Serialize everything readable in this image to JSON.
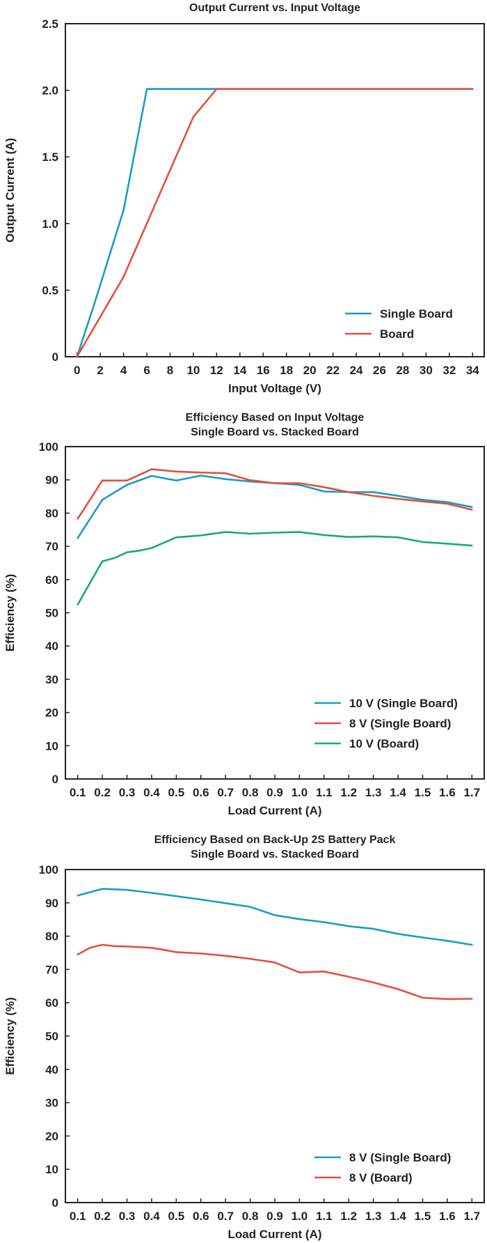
{
  "chart_data": [
    {
      "type": "line",
      "title": [
        "Output Current vs. Input Voltage"
      ],
      "xlabel": "Input Voltage (V)",
      "ylabel": "Output Current (A)",
      "xlim": [
        -1,
        35
      ],
      "ylim": [
        0,
        2.5
      ],
      "xticks": [
        "0",
        "2",
        "4",
        "6",
        "8",
        "10",
        "12",
        "14",
        "16",
        "18",
        "20",
        "22",
        "24",
        "26",
        "28",
        "30",
        "32",
        "34"
      ],
      "yticks": [
        "0",
        "0.5",
        "1.0",
        "1.5",
        "2.0",
        "2.5"
      ],
      "grid": false,
      "legend_position": "bottom-right",
      "series": [
        {
          "name": "Single Board",
          "color": "#1a9bc7",
          "x": [
            0,
            1.5,
            4,
            6,
            34
          ],
          "y": [
            0,
            0.4,
            1.1,
            2.01,
            2.01
          ]
        },
        {
          "name": "Board",
          "color": "#e0513f",
          "x": [
            0,
            4,
            10,
            12,
            34
          ],
          "y": [
            0,
            0.6,
            1.8,
            2.01,
            2.01
          ]
        }
      ]
    },
    {
      "type": "line",
      "title": [
        "Efficiency Based on Input Voltage",
        "Single Board vs. Stacked Board"
      ],
      "xlabel": "Load Current (A)",
      "ylabel": "Efficiency (%)",
      "xlim": [
        0.05,
        1.75
      ],
      "ylim": [
        0,
        100
      ],
      "xticks": [
        "0.1",
        "0.2",
        "0.3",
        "0.4",
        "0.5",
        "0.6",
        "0.7",
        "0.8",
        "0.9",
        "1.0",
        "1.1",
        "1.2",
        "1.3",
        "1.4",
        "1.5",
        "1.6",
        "1.7"
      ],
      "yticks": [
        "0",
        "10",
        "20",
        "30",
        "40",
        "50",
        "60",
        "70",
        "80",
        "90",
        "100"
      ],
      "grid": false,
      "legend_position": "bottom-right",
      "series": [
        {
          "name": "10 V (Single Board)",
          "color": "#1a9bc7",
          "x": [
            0.1,
            0.2,
            0.3,
            0.4,
            0.5,
            0.6,
            0.7,
            0.8,
            0.9,
            1.0,
            1.1,
            1.2,
            1.3,
            1.4,
            1.5,
            1.6,
            1.7
          ],
          "y": [
            72.5,
            84,
            88.5,
            91.2,
            89.8,
            91.3,
            90.2,
            89.5,
            89,
            88.5,
            86.5,
            86.3,
            86.3,
            85.2,
            84,
            83.3,
            81.8
          ]
        },
        {
          "name": "8 V (Single Board)",
          "color": "#e0513f",
          "x": [
            0.1,
            0.2,
            0.3,
            0.4,
            0.5,
            0.6,
            0.7,
            0.8,
            0.9,
            1.0,
            1.1,
            1.2,
            1.3,
            1.4,
            1.5,
            1.6,
            1.7
          ],
          "y": [
            78.3,
            89.8,
            89.8,
            93.2,
            92.5,
            92.2,
            92,
            89.9,
            89,
            89,
            87.8,
            86.3,
            85.2,
            84.3,
            83.5,
            82.8,
            81
          ]
        },
        {
          "name": "10 V (Board)",
          "color": "#1aa979",
          "x": [
            0.1,
            0.2,
            0.25,
            0.3,
            0.35,
            0.4,
            0.5,
            0.6,
            0.7,
            0.8,
            0.9,
            1.0,
            1.1,
            1.2,
            1.3,
            1.4,
            1.5,
            1.6,
            1.7
          ],
          "y": [
            52.5,
            65.5,
            66.5,
            68.2,
            68.7,
            69.5,
            72.7,
            73.3,
            74.3,
            73.8,
            74.1,
            74.3,
            73.4,
            72.8,
            73,
            72.7,
            71.3,
            70.8,
            70.2
          ]
        }
      ]
    },
    {
      "type": "line",
      "title": [
        "Efficiency Based on Back-Up 2S Battery Pack",
        "Single Board vs. Stacked Board"
      ],
      "xlabel": "Load Current (A)",
      "ylabel": "Efficiency (%)",
      "xlim": [
        0.05,
        1.75
      ],
      "ylim": [
        0,
        100
      ],
      "xticks": [
        "0.1",
        "0.2",
        "0.3",
        "0.4",
        "0.5",
        "0.6",
        "0.7",
        "0.8",
        "0.9",
        "1.0",
        "1.1",
        "1.2",
        "1.3",
        "1.4",
        "1.5",
        "1.6",
        "1.7"
      ],
      "yticks": [
        "0",
        "10",
        "20",
        "30",
        "40",
        "50",
        "60",
        "70",
        "80",
        "90",
        "100"
      ],
      "grid": false,
      "legend_position": "bottom-right",
      "series": [
        {
          "name": "8 V (Single Board)",
          "color": "#1a9bc7",
          "x": [
            0.1,
            0.2,
            0.3,
            0.4,
            0.5,
            0.6,
            0.7,
            0.8,
            0.9,
            1.0,
            1.1,
            1.2,
            1.3,
            1.4,
            1.5,
            1.6,
            1.7
          ],
          "y": [
            92.2,
            94.2,
            93.9,
            93,
            92,
            91,
            89.9,
            88.8,
            86.3,
            85.1,
            84.2,
            83,
            82.2,
            80.7,
            79.6,
            78.6,
            77.4
          ]
        },
        {
          "name": "8 V (Board)",
          "color": "#e0513f",
          "x": [
            0.1,
            0.15,
            0.2,
            0.25,
            0.3,
            0.4,
            0.5,
            0.6,
            0.7,
            0.8,
            0.9,
            1.0,
            1.1,
            1.2,
            1.3,
            1.4,
            1.5,
            1.6,
            1.7
          ],
          "y": [
            74.5,
            76.5,
            77.4,
            77,
            76.9,
            76.5,
            75.2,
            74.8,
            74.1,
            73.2,
            72.1,
            69.1,
            69.4,
            67.8,
            66.1,
            64.1,
            61.5,
            61.1,
            61.2
          ]
        }
      ]
    }
  ]
}
